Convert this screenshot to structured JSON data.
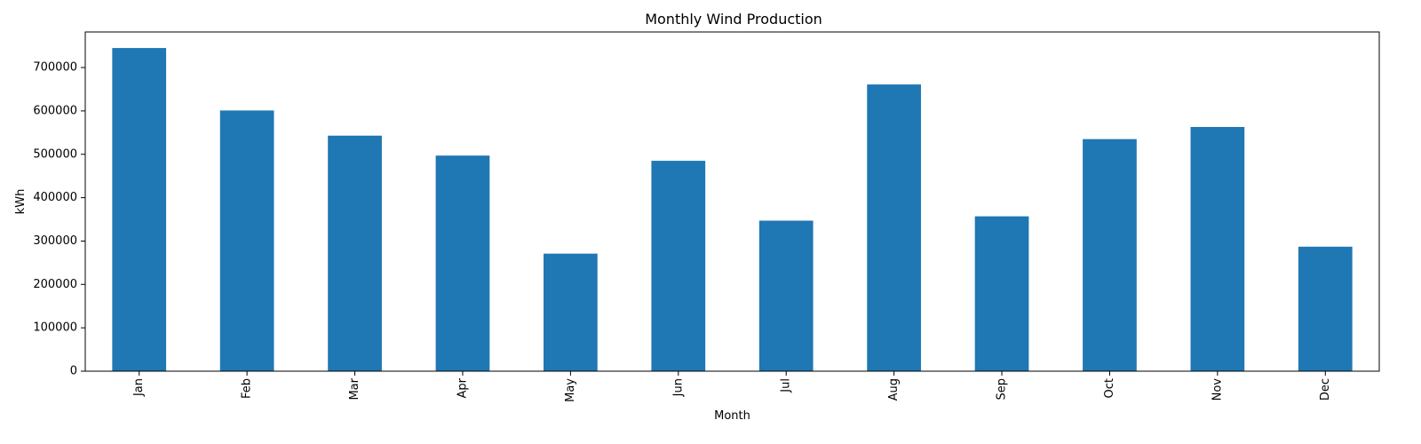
{
  "chart_data": {
    "type": "bar",
    "title": "Monthly Wind Production",
    "xlabel": "Month",
    "ylabel": "kWh",
    "categories": [
      "Jan",
      "Feb",
      "Mar",
      "Apr",
      "May",
      "Jun",
      "Jul",
      "Aug",
      "Sep",
      "Oct",
      "Nov",
      "Dec"
    ],
    "values": [
      745000,
      601000,
      543000,
      497000,
      271000,
      485000,
      347000,
      661000,
      357000,
      535000,
      563000,
      287000
    ],
    "ylim": [
      0,
      782000
    ],
    "yticks": [
      0,
      100000,
      200000,
      300000,
      400000,
      500000,
      600000,
      700000
    ],
    "grid": false,
    "bar_color": "#1f77b4"
  }
}
